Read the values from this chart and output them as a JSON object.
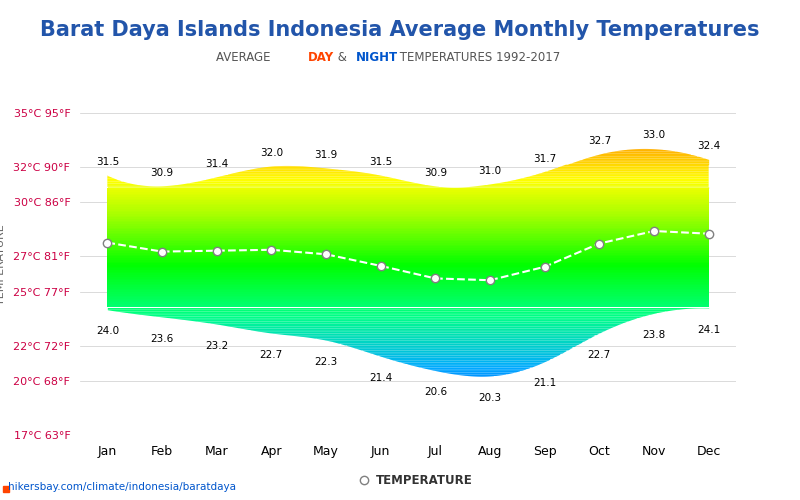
{
  "title": "Barat Daya Islands Indonesia Average Monthly Temperatures",
  "subtitle_plain": "AVERAGE ",
  "subtitle_day": "DAY",
  "subtitle_mid": " & ",
  "subtitle_night": "NIGHT",
  "subtitle_end": " TEMPERATURES 1992-2017",
  "months": [
    "Jan",
    "Feb",
    "Mar",
    "Apr",
    "May",
    "Jun",
    "Jul",
    "Aug",
    "Sep",
    "Oct",
    "Nov",
    "Dec"
  ],
  "day_temps": [
    31.5,
    30.9,
    31.4,
    32.0,
    31.9,
    31.5,
    30.9,
    31.0,
    31.7,
    32.7,
    33.0,
    32.4
  ],
  "night_temps": [
    24.0,
    23.6,
    23.2,
    22.7,
    22.3,
    21.4,
    20.6,
    20.3,
    21.1,
    22.7,
    23.8,
    24.1
  ],
  "ylim": [
    17,
    36
  ],
  "yticks_c": [
    17,
    20,
    22,
    25,
    27,
    30,
    32,
    35
  ],
  "yticks_f": [
    63,
    68,
    72,
    77,
    81,
    86,
    90,
    95
  ],
  "bg_color": "#ffffff",
  "title_color": "#2255aa",
  "title_fontsize": 15,
  "subtitle_fontsize": 9,
  "day_color": "#ff4400",
  "night_color": "#0055cc",
  "axis_label_color": "#cc0044",
  "tick_color": "#cc0044",
  "midline_color": "#ffffff",
  "watermark": "hikersbay.com/climate/indonesia/baratdaya",
  "legend_label": "TEMPERATURE"
}
